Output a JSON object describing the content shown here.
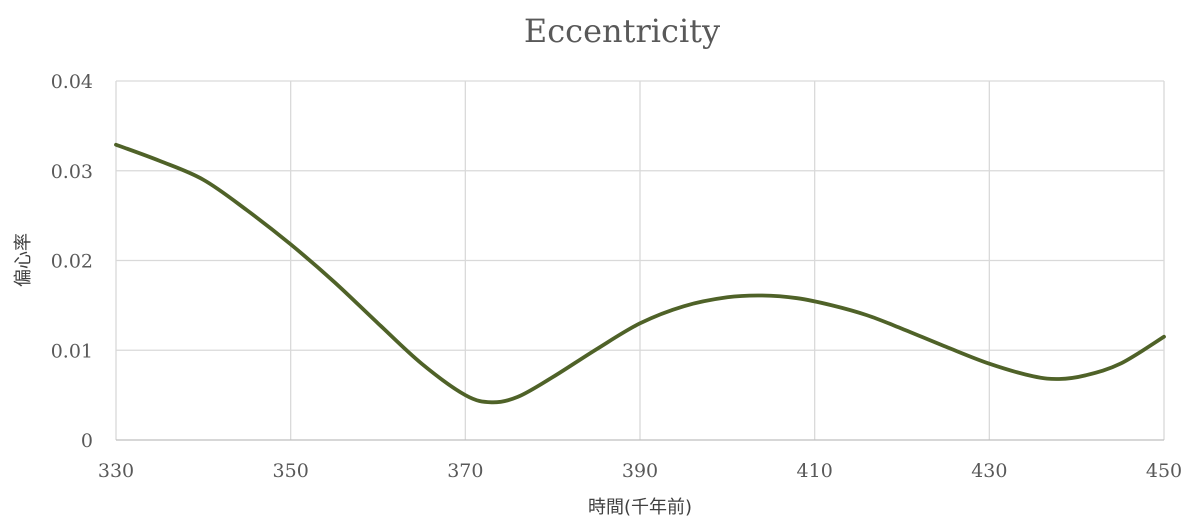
{
  "chart_data": {
    "type": "line",
    "title": "Eccentricity",
    "xlabel": "時間(千年前)",
    "ylabel": "偏心率",
    "xlim": [
      330,
      450
    ],
    "ylim": [
      0,
      0.04
    ],
    "x_ticks": [
      330,
      350,
      370,
      390,
      410,
      430,
      450
    ],
    "x_tick_labels": [
      "330",
      "350",
      "370",
      "390",
      "410",
      "430",
      "450"
    ],
    "y_ticks": [
      0,
      0.01,
      0.02,
      0.03,
      0.04
    ],
    "y_tick_labels": [
      "0",
      "0.01",
      "0.02",
      "0.03",
      "0.04"
    ],
    "grid": true,
    "legend": "none",
    "series": [
      {
        "color": "#4f6228",
        "x": [
          330,
          335,
          340,
          345,
          350,
          355,
          360,
          365,
          370,
          373,
          376,
          380,
          385,
          390,
          395,
          400,
          404,
          408,
          412,
          416,
          420,
          425,
          430,
          435,
          438,
          441,
          445,
          450
        ],
        "y": [
          0.0329,
          0.0311,
          0.029,
          0.0256,
          0.0218,
          0.0176,
          0.013,
          0.0085,
          0.005,
          0.0042,
          0.0048,
          0.007,
          0.0101,
          0.013,
          0.0149,
          0.0159,
          0.0161,
          0.0158,
          0.015,
          0.0139,
          0.0124,
          0.0104,
          0.0085,
          0.0071,
          0.0068,
          0.0072,
          0.0085,
          0.0115
        ]
      }
    ]
  }
}
